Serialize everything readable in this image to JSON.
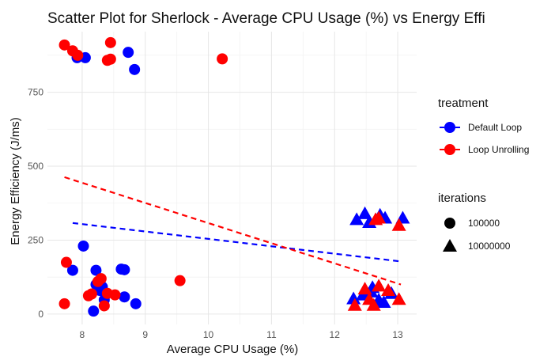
{
  "chart_data": {
    "type": "scatter",
    "title": "Scatter Plot for Sherlock - Average CPU Usage (%) vs Energy Effi",
    "xlabel": "Average CPU Usage (%)",
    "ylabel": "Energy Efficiency (J/ms)",
    "xlim": [
      7.45,
      13.3
    ],
    "ylim": [
      -35,
      955
    ],
    "x_ticks": [
      8,
      9,
      10,
      11,
      12,
      13
    ],
    "y_ticks": [
      0,
      250,
      500,
      750
    ],
    "grid": true,
    "legend_position": "right",
    "legend": {
      "color_title": "treatment",
      "shape_title": "iterations",
      "color_entries": [
        {
          "label": "Default Loop",
          "color": "#0000ff"
        },
        {
          "label": "Loop Unrolling",
          "color": "#ff0000"
        }
      ],
      "shape_entries": [
        {
          "label": "100000",
          "shape": "circle"
        },
        {
          "label": "10000000",
          "shape": "triangle"
        }
      ]
    },
    "series": [
      {
        "name": "Default Loop",
        "color": "#0000ff",
        "points_100000": [
          [
            7.92,
            867
          ],
          [
            8.05,
            867
          ],
          [
            8.73,
            885
          ],
          [
            8.83,
            827
          ],
          [
            7.85,
            148
          ],
          [
            8.02,
            230
          ],
          [
            8.22,
            148
          ],
          [
            8.62,
            152
          ],
          [
            8.67,
            150
          ],
          [
            8.22,
            100
          ],
          [
            8.32,
            92
          ],
          [
            8.28,
            80
          ],
          [
            8.67,
            58
          ],
          [
            8.35,
            48
          ],
          [
            8.85,
            35
          ],
          [
            8.18,
            10
          ]
        ],
        "points_10000000": [
          [
            12.35,
            320
          ],
          [
            12.48,
            340
          ],
          [
            12.55,
            310
          ],
          [
            12.72,
            335
          ],
          [
            12.8,
            325
          ],
          [
            13.08,
            325
          ],
          [
            12.3,
            52
          ],
          [
            12.45,
            65
          ],
          [
            12.6,
            90
          ],
          [
            12.7,
            48
          ],
          [
            12.78,
            40
          ],
          [
            12.9,
            70
          ],
          [
            12.58,
            75
          ]
        ],
        "trend": [
          [
            7.85,
            308
          ],
          [
            13.05,
            178
          ]
        ]
      },
      {
        "name": "Loop Unrolling",
        "color": "#ff0000",
        "points_100000": [
          [
            7.72,
            910
          ],
          [
            7.85,
            890
          ],
          [
            7.93,
            875
          ],
          [
            8.45,
            918
          ],
          [
            8.4,
            858
          ],
          [
            8.45,
            862
          ],
          [
            10.22,
            863
          ],
          [
            7.75,
            175
          ],
          [
            7.72,
            35
          ],
          [
            8.1,
            62
          ],
          [
            8.15,
            68
          ],
          [
            8.25,
            110
          ],
          [
            8.3,
            120
          ],
          [
            8.35,
            28
          ],
          [
            8.4,
            70
          ],
          [
            8.52,
            65
          ],
          [
            9.55,
            113
          ]
        ],
        "points_10000000": [
          [
            12.65,
            320
          ],
          [
            12.7,
            325
          ],
          [
            13.02,
            300
          ],
          [
            12.32,
            30
          ],
          [
            12.48,
            85
          ],
          [
            12.55,
            50
          ],
          [
            12.62,
            30
          ],
          [
            12.7,
            95
          ],
          [
            12.85,
            80
          ],
          [
            13.02,
            50
          ]
        ],
        "trend": [
          [
            7.72,
            463
          ],
          [
            13.05,
            100
          ]
        ]
      }
    ]
  }
}
